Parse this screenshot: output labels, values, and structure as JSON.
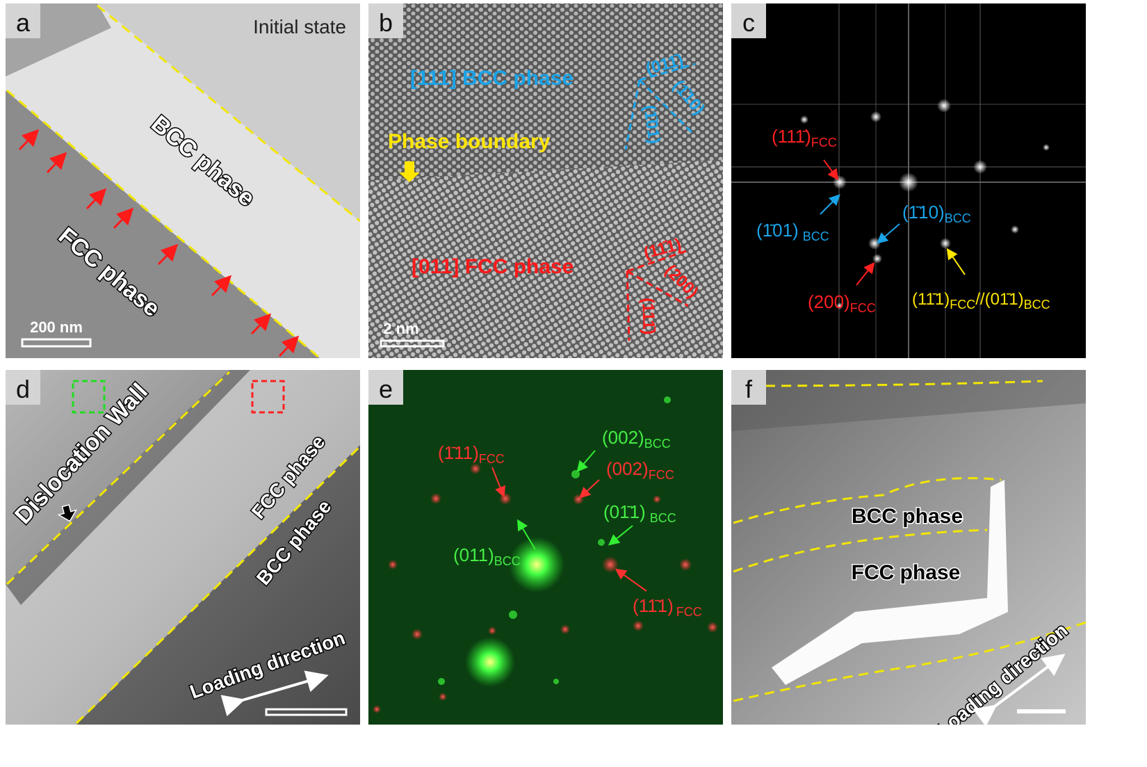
{
  "panel_a": {
    "label": "a",
    "caption": "Initial state",
    "bcc": "BCC phase",
    "fcc": "FCC phase",
    "scale_bar": "200 nm"
  },
  "panel_b": {
    "label": "b",
    "bcc_zone": "[111] BCC phase",
    "boundary": "Phase boundary",
    "fcc_zone": "[011] FCC phase",
    "scale_bar": "2 nm",
    "bcc_planes": [
      "(011̄)",
      "(1̄10)",
      "(1̄01)"
    ],
    "fcc_planes": [
      "(11̄1)",
      "(200)",
      "(111̄)"
    ]
  },
  "panel_c": {
    "label": "c",
    "spots": [
      [
        {
          "text": "(111̄)",
          "sub": "FCC"
        }
      ],
      [
        {
          "text": "(1̄01)",
          "sub": "BCC"
        }
      ],
      [
        {
          "text": "(1̄10)",
          "sub": "BCC"
        }
      ],
      [
        {
          "text": "(200)",
          "sub": "FCC"
        }
      ],
      [
        {
          "text": "(11̄1)",
          "sub": "FCC"
        },
        {
          "text": "//(01̄1)",
          "sub": "BCC"
        }
      ]
    ]
  },
  "panel_d": {
    "label": "d",
    "wall": "Dislocation Wall",
    "fcc": "FCC phase",
    "bcc": "BCC phase",
    "loading": "Loading direction"
  },
  "panel_e": {
    "label": "e",
    "spots": [
      {
        "text": "(002)",
        "sub": "BCC"
      },
      {
        "text": "(1̄11)",
        "sub": "FCC"
      },
      {
        "text": "(002)",
        "sub": "FCC"
      },
      {
        "text": "(011)",
        "sub": "BCC"
      },
      {
        "text": "(01̄1)",
        "sub": "BCC"
      },
      {
        "text": "(11̄1)",
        "sub": "FCC"
      }
    ]
  },
  "panel_f": {
    "label": "f",
    "bcc": "BCC phase",
    "fcc": "FCC phase",
    "loading": "Loading direction"
  }
}
